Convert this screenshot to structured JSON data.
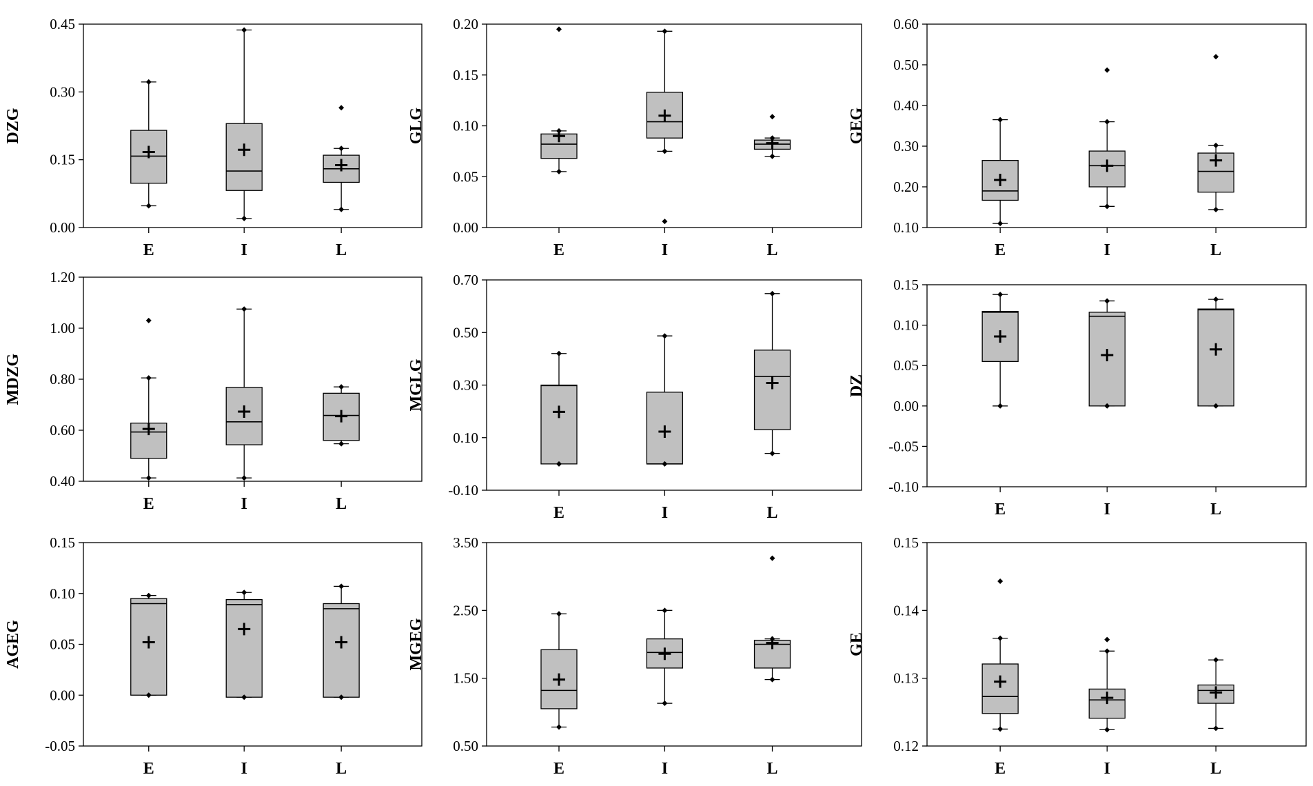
{
  "figure": {
    "background": "#ffffff",
    "box_fill": "#c0c0c0",
    "line_color": "#000000"
  },
  "chart_data": [
    {
      "type": "box",
      "ylabel": "DZG",
      "categories": [
        "E",
        "I",
        "L"
      ],
      "ylim": [
        0.0,
        0.45
      ],
      "yticks": [
        "0.00",
        "0.15",
        "0.30",
        "0.45"
      ],
      "boxes": [
        {
          "name": "E",
          "whisker_low": 0.048,
          "q1": 0.098,
          "median": 0.158,
          "q3": 0.215,
          "whisker_high": 0.322,
          "mean": 0.167,
          "outliers": []
        },
        {
          "name": "I",
          "whisker_low": 0.02,
          "q1": 0.082,
          "median": 0.125,
          "q3": 0.23,
          "whisker_high": 0.437,
          "mean": 0.172,
          "outliers": []
        },
        {
          "name": "L",
          "whisker_low": 0.04,
          "q1": 0.1,
          "median": 0.13,
          "q3": 0.16,
          "whisker_high": 0.175,
          "mean": 0.138,
          "outliers": [
            0.265
          ]
        }
      ]
    },
    {
      "type": "box",
      "ylabel": "GLG",
      "categories": [
        "E",
        "I",
        "L"
      ],
      "ylim": [
        0.0,
        0.2
      ],
      "yticks": [
        "0.00",
        "0.05",
        "0.10",
        "0.15",
        "0.20"
      ],
      "boxes": [
        {
          "name": "E",
          "whisker_low": 0.055,
          "q1": 0.068,
          "median": 0.082,
          "q3": 0.092,
          "whisker_high": 0.095,
          "mean": 0.09,
          "outliers": [
            0.195
          ]
        },
        {
          "name": "I",
          "whisker_low": 0.075,
          "q1": 0.088,
          "median": 0.104,
          "q3": 0.133,
          "whisker_high": 0.193,
          "mean": 0.11,
          "outliers": [
            0.006
          ]
        },
        {
          "name": "L",
          "whisker_low": 0.07,
          "q1": 0.077,
          "median": 0.082,
          "q3": 0.086,
          "whisker_high": 0.088,
          "mean": 0.083,
          "outliers": [
            0.109
          ]
        }
      ]
    },
    {
      "type": "box",
      "ylabel": "GEG",
      "categories": [
        "E",
        "I",
        "L"
      ],
      "ylim": [
        0.1,
        0.6
      ],
      "yticks": [
        "0.10",
        "0.20",
        "0.30",
        "0.40",
        "0.50",
        "0.60"
      ],
      "boxes": [
        {
          "name": "E",
          "whisker_low": 0.11,
          "q1": 0.167,
          "median": 0.19,
          "q3": 0.265,
          "whisker_high": 0.365,
          "mean": 0.217,
          "outliers": []
        },
        {
          "name": "I",
          "whisker_low": 0.152,
          "q1": 0.2,
          "median": 0.252,
          "q3": 0.288,
          "whisker_high": 0.36,
          "mean": 0.252,
          "outliers": [
            0.487
          ]
        },
        {
          "name": "L",
          "whisker_low": 0.144,
          "q1": 0.187,
          "median": 0.238,
          "q3": 0.283,
          "whisker_high": 0.302,
          "mean": 0.265,
          "outliers": [
            0.52
          ]
        }
      ]
    },
    {
      "type": "box",
      "ylabel": "MDZG",
      "categories": [
        "E",
        "I",
        "L"
      ],
      "ylim": [
        0.4,
        1.2
      ],
      "yticks": [
        "0.40",
        "0.60",
        "0.80",
        "1.00",
        "1.20"
      ],
      "boxes": [
        {
          "name": "E",
          "whisker_low": 0.413,
          "q1": 0.49,
          "median": 0.593,
          "q3": 0.628,
          "whisker_high": 0.805,
          "mean": 0.605,
          "outliers": [
            1.03
          ]
        },
        {
          "name": "I",
          "whisker_low": 0.413,
          "q1": 0.543,
          "median": 0.633,
          "q3": 0.768,
          "whisker_high": 1.075,
          "mean": 0.673,
          "outliers": []
        },
        {
          "name": "L",
          "whisker_low": 0.547,
          "q1": 0.56,
          "median": 0.658,
          "q3": 0.745,
          "whisker_high": 0.77,
          "mean": 0.655,
          "outliers": []
        }
      ]
    },
    {
      "type": "box",
      "ylabel": "MGLG",
      "categories": [
        "E",
        "I",
        "L"
      ],
      "ylim": [
        -0.1,
        0.7
      ],
      "yticks": [
        "-0.10",
        "0.10",
        "0.30",
        "0.50",
        "0.70"
      ],
      "boxes": [
        {
          "name": "E",
          "whisker_low": 0.0,
          "q1": 0.0,
          "median": 0.298,
          "q3": 0.3,
          "whisker_high": 0.42,
          "mean": 0.198,
          "outliers": []
        },
        {
          "name": "I",
          "whisker_low": 0.0,
          "q1": 0.0,
          "median": 0.0,
          "q3": 0.273,
          "whisker_high": 0.487,
          "mean": 0.123,
          "outliers": []
        },
        {
          "name": "L",
          "whisker_low": 0.04,
          "q1": 0.13,
          "median": 0.333,
          "q3": 0.433,
          "whisker_high": 0.648,
          "mean": 0.308,
          "outliers": []
        }
      ]
    },
    {
      "type": "box",
      "ylabel": "DZ",
      "categories": [
        "E",
        "I",
        "L"
      ],
      "ylim": [
        -0.1,
        0.15
      ],
      "yticks": [
        "-0.10",
        "-0.05",
        "0.00",
        "0.05",
        "0.10",
        "0.15"
      ],
      "boxes": [
        {
          "name": "E",
          "whisker_low": 0.0,
          "q1": 0.055,
          "median": 0.116,
          "q3": 0.117,
          "whisker_high": 0.138,
          "mean": 0.086,
          "outliers": []
        },
        {
          "name": "I",
          "whisker_low": 0.0,
          "q1": 0.0,
          "median": 0.111,
          "q3": 0.116,
          "whisker_high": 0.13,
          "mean": 0.063,
          "outliers": []
        },
        {
          "name": "L",
          "whisker_low": 0.0,
          "q1": 0.0,
          "median": 0.119,
          "q3": 0.12,
          "whisker_high": 0.132,
          "mean": 0.07,
          "outliers": []
        }
      ]
    },
    {
      "type": "box",
      "ylabel": "AGEG",
      "categories": [
        "E",
        "I",
        "L"
      ],
      "ylim": [
        -0.05,
        0.15
      ],
      "yticks": [
        "-0.05",
        "0.00",
        "0.05",
        "0.10",
        "0.15"
      ],
      "boxes": [
        {
          "name": "E",
          "whisker_low": 0.0,
          "q1": 0.0,
          "median": 0.09,
          "q3": 0.095,
          "whisker_high": 0.098,
          "mean": 0.052,
          "outliers": []
        },
        {
          "name": "I",
          "whisker_low": -0.002,
          "q1": -0.002,
          "median": 0.089,
          "q3": 0.094,
          "whisker_high": 0.101,
          "mean": 0.065,
          "outliers": []
        },
        {
          "name": "L",
          "whisker_low": -0.002,
          "q1": -0.002,
          "median": 0.085,
          "q3": 0.09,
          "whisker_high": 0.107,
          "mean": 0.052,
          "outliers": []
        }
      ]
    },
    {
      "type": "box",
      "ylabel": "MGEG",
      "categories": [
        "E",
        "I",
        "L"
      ],
      "ylim": [
        0.5,
        3.5
      ],
      "yticks": [
        "0.50",
        "1.50",
        "2.50",
        "3.50"
      ],
      "boxes": [
        {
          "name": "E",
          "whisker_low": 0.78,
          "q1": 1.05,
          "median": 1.32,
          "q3": 1.92,
          "whisker_high": 2.45,
          "mean": 1.48,
          "outliers": []
        },
        {
          "name": "I",
          "whisker_low": 1.13,
          "q1": 1.65,
          "median": 1.88,
          "q3": 2.08,
          "whisker_high": 2.5,
          "mean": 1.86,
          "outliers": []
        },
        {
          "name": "L",
          "whisker_low": 1.48,
          "q1": 1.65,
          "median": 2.0,
          "q3": 2.06,
          "whisker_high": 2.08,
          "mean": 2.02,
          "outliers": [
            3.27
          ]
        }
      ]
    },
    {
      "type": "box",
      "ylabel": "GE",
      "categories": [
        "E",
        "I",
        "L"
      ],
      "ylim": [
        0.12,
        0.15
      ],
      "yticks": [
        "0.12",
        "0.13",
        "0.14",
        "0.15"
      ],
      "boxes": [
        {
          "name": "E",
          "whisker_low": 0.1225,
          "q1": 0.1248,
          "median": 0.1273,
          "q3": 0.1321,
          "whisker_high": 0.1359,
          "mean": 0.1295,
          "outliers": [
            0.1443
          ]
        },
        {
          "name": "I",
          "whisker_low": 0.1224,
          "q1": 0.1241,
          "median": 0.1268,
          "q3": 0.1284,
          "whisker_high": 0.134,
          "mean": 0.1271,
          "outliers": [
            0.1357
          ]
        },
        {
          "name": "L",
          "whisker_low": 0.1226,
          "q1": 0.1263,
          "median": 0.1282,
          "q3": 0.129,
          "whisker_high": 0.1327,
          "mean": 0.1279,
          "outliers": []
        }
      ]
    }
  ]
}
